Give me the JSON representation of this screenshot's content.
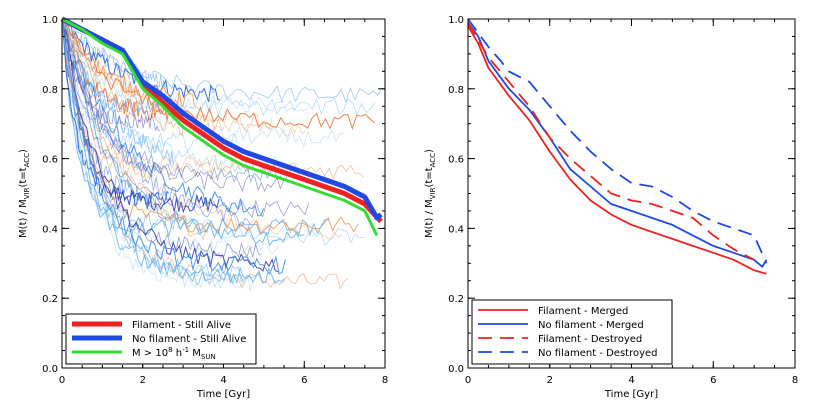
{
  "chart_data": [
    {
      "type": "line",
      "title": "",
      "xlabel": "Time [Gyr]",
      "ylabel_main": "M(t) / M",
      "ylabel_sub1": "VIR",
      "ylabel_mid": "(t=t",
      "ylabel_sub2": "ACC",
      "ylabel_end": ")",
      "xlim": [
        0,
        8
      ],
      "ylim": [
        0.0,
        1.0
      ],
      "xticks": [
        0,
        2,
        4,
        6,
        8
      ],
      "yticks": [
        0.0,
        0.2,
        0.4,
        0.6,
        0.8,
        1.0
      ],
      "legend_position": "bottom-left",
      "legend": [
        {
          "text": "Filament - Still Alive",
          "color": "#ee2222"
        },
        {
          "text": "No filament - Still Alive",
          "color": "#1f49e0"
        },
        {
          "text": "M > 10",
          "sup": "8",
          "mid": " h",
          "sup2": "-1",
          "tail": " M",
          "sub": "SUN",
          "color": "#33dd33"
        }
      ],
      "series": [
        {
          "color": "#ee2222",
          "x": [
            0,
            0.5,
            1.0,
            1.5,
            2.0,
            2.5,
            3.0,
            3.5,
            4.0,
            4.5,
            5.0,
            5.5,
            6.0,
            6.5,
            7.0,
            7.5,
            7.9
          ],
          "y": [
            1.0,
            0.97,
            0.94,
            0.91,
            0.81,
            0.76,
            0.71,
            0.67,
            0.63,
            0.6,
            0.58,
            0.56,
            0.54,
            0.52,
            0.5,
            0.47,
            0.42
          ]
        },
        {
          "color": "#1f49e0",
          "x": [
            0,
            0.5,
            1.0,
            1.5,
            2.0,
            2.5,
            3.0,
            3.5,
            4.0,
            4.5,
            5.0,
            5.5,
            6.0,
            6.5,
            7.0,
            7.5,
            7.8,
            7.9
          ],
          "y": [
            1.0,
            0.97,
            0.94,
            0.91,
            0.82,
            0.78,
            0.73,
            0.69,
            0.65,
            0.62,
            0.6,
            0.58,
            0.56,
            0.54,
            0.52,
            0.49,
            0.43,
            0.44
          ]
        },
        {
          "color": "#33dd33",
          "x": [
            0,
            0.5,
            1.0,
            1.5,
            2.0,
            2.5,
            3.0,
            3.5,
            4.0,
            4.5,
            5.0,
            5.5,
            6.0,
            6.5,
            7.0,
            7.5,
            7.8
          ],
          "y": [
            1.0,
            0.97,
            0.93,
            0.9,
            0.8,
            0.75,
            0.69,
            0.65,
            0.61,
            0.58,
            0.56,
            0.54,
            0.52,
            0.5,
            0.48,
            0.45,
            0.38
          ]
        }
      ]
    },
    {
      "type": "line",
      "title": "",
      "xlabel": "Time [Gyr]",
      "ylabel_main": "M(t) / M",
      "ylabel_sub1": "VIR",
      "ylabel_mid": "(t=t",
      "ylabel_sub2": "ACC",
      "ylabel_end": ")",
      "xlim": [
        0,
        8
      ],
      "ylim": [
        0.0,
        1.0
      ],
      "xticks": [
        0,
        2,
        4,
        6,
        8
      ],
      "yticks": [
        0.0,
        0.2,
        0.4,
        0.6,
        0.8,
        1.0
      ],
      "legend_position": "bottom-left",
      "legend": [
        {
          "text": "Filament - Merged",
          "color": "#ee2222",
          "dash": false
        },
        {
          "text": "No filament - Merged",
          "color": "#1f49e0",
          "dash": false
        },
        {
          "text": "Filament - Destroyed",
          "color": "#ee2222",
          "dash": true
        },
        {
          "text": "No filament - Destroyed",
          "color": "#1f49e0",
          "dash": true
        }
      ],
      "series": [
        {
          "name": "Filament - Merged",
          "color": "#ee2222",
          "dash": false,
          "x": [
            0,
            0.25,
            0.5,
            1.0,
            1.5,
            2.0,
            2.5,
            3.0,
            3.5,
            4.0,
            4.5,
            5.0,
            5.5,
            6.0,
            6.5,
            7.0,
            7.3
          ],
          "y": [
            0.98,
            0.93,
            0.86,
            0.78,
            0.71,
            0.62,
            0.54,
            0.48,
            0.44,
            0.41,
            0.39,
            0.37,
            0.35,
            0.33,
            0.31,
            0.28,
            0.27
          ]
        },
        {
          "name": "No filament - Merged",
          "color": "#1f49e0",
          "dash": false,
          "x": [
            0,
            0.25,
            0.5,
            1.0,
            1.5,
            2.0,
            2.5,
            3.0,
            3.5,
            4.0,
            4.5,
            5.0,
            5.5,
            6.0,
            6.5,
            7.0,
            7.2,
            7.3
          ],
          "y": [
            0.99,
            0.95,
            0.88,
            0.8,
            0.74,
            0.66,
            0.57,
            0.52,
            0.47,
            0.45,
            0.43,
            0.41,
            0.38,
            0.35,
            0.33,
            0.31,
            0.29,
            0.31
          ]
        },
        {
          "name": "Filament - Destroyed",
          "color": "#ee2222",
          "dash": true,
          "x": [
            0,
            0.5,
            1.0,
            1.5,
            2.0,
            2.5,
            3.0,
            3.5,
            4.0,
            4.5,
            5.0,
            5.5,
            6.0,
            6.5,
            7.0
          ],
          "y": [
            0.99,
            0.89,
            0.82,
            0.75,
            0.66,
            0.6,
            0.55,
            0.5,
            0.48,
            0.47,
            0.45,
            0.43,
            0.38,
            0.34,
            0.31
          ]
        },
        {
          "name": "No filament - Destroyed",
          "color": "#1f49e0",
          "dash": true,
          "x": [
            0,
            0.25,
            0.5,
            0.8,
            1.0,
            1.5,
            2.0,
            2.5,
            3.0,
            3.5,
            4.0,
            4.5,
            5.0,
            5.5,
            6.0,
            6.5,
            7.0,
            7.3
          ],
          "y": [
            1.0,
            0.96,
            0.92,
            0.88,
            0.85,
            0.82,
            0.75,
            0.68,
            0.62,
            0.57,
            0.53,
            0.52,
            0.49,
            0.45,
            0.42,
            0.4,
            0.38,
            0.3
          ]
        }
      ]
    }
  ]
}
